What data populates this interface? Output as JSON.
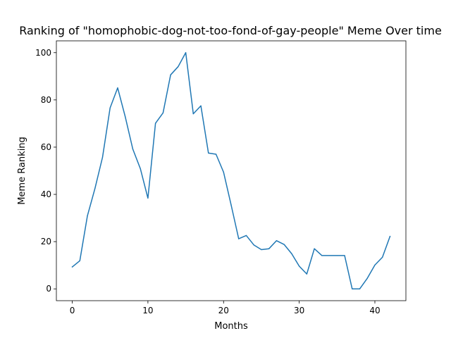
{
  "chart_data": {
    "type": "line",
    "title": "Ranking of \"homophobic-dog-not-too-fond-of-gay-people\" Meme Over time",
    "xlabel": "Months",
    "ylabel": "Meme Ranking",
    "xlim": [
      -2.1,
      44.1
    ],
    "ylim": [
      -5,
      105
    ],
    "xticks": [
      0,
      10,
      20,
      30,
      40
    ],
    "yticks": [
      0,
      20,
      40,
      60,
      80,
      100
    ],
    "grid": false,
    "line_color": "#1f77b4",
    "series": [
      {
        "x": [
          0,
          1,
          2,
          3,
          4,
          5,
          6,
          7,
          8,
          9,
          10,
          11,
          12,
          13,
          14,
          15,
          16,
          17,
          18,
          19,
          20,
          21,
          22,
          23,
          24,
          25,
          26,
          27,
          28,
          29,
          30,
          31,
          32,
          33,
          34,
          35,
          36,
          37,
          38,
          39,
          40,
          41,
          42
        ],
        "values": [
          9.3,
          11.9,
          30.9,
          42.5,
          55.7,
          76.6,
          85.1,
          72.9,
          59.2,
          50.9,
          38.4,
          70.1,
          74.5,
          90.6,
          94.1,
          100,
          74.1,
          77.5,
          57.5,
          57,
          49.4,
          35.5,
          21.2,
          22.6,
          18.6,
          16.6,
          17,
          20.4,
          18.8,
          14.9,
          9.6,
          6.3,
          17,
          14.1,
          14.1,
          14.1,
          14.1,
          0,
          0,
          4.5,
          10.1,
          13.4,
          22.2
        ]
      }
    ]
  }
}
